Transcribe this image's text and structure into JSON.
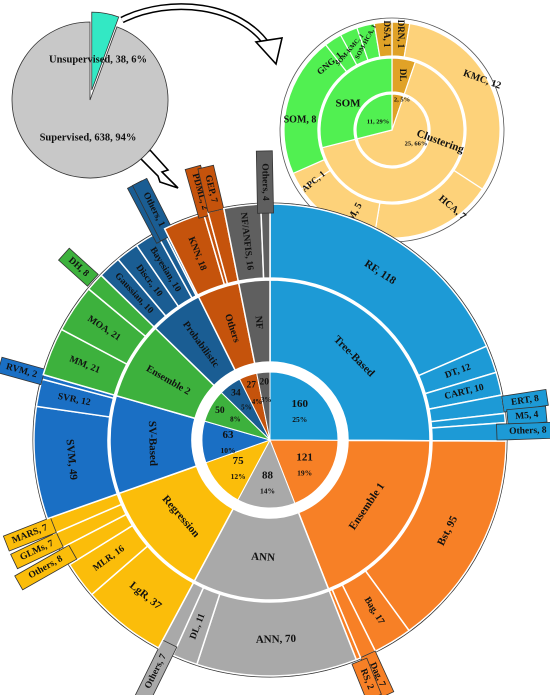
{
  "chart_data": [
    {
      "type": "pie",
      "labels": [
        "Unsupervised",
        "Supervised"
      ],
      "values": [
        38,
        638
      ],
      "percent_labels": [
        "6%",
        "94%"
      ],
      "slice_text": [
        "Unsupervised, 38, 6%",
        "Supervised, 638, 94%"
      ],
      "colors": [
        "#33e8c4",
        "#c8c8c8"
      ]
    },
    {
      "type": "sunburst",
      "name": "unsupervised",
      "inner": [
        {
          "label": "2, 5%",
          "value": 2,
          "color": "#e0a227"
        },
        {
          "label": "25, 66%",
          "value": 25,
          "color": "#fdd27a"
        },
        {
          "label": "11, 29%",
          "value": 11,
          "color": "#51f051"
        }
      ],
      "middle": [
        {
          "label": "DL",
          "value": 2,
          "color": "#e0a227"
        },
        {
          "label": "Clustering",
          "value": 25,
          "color": "#fdd27a"
        },
        {
          "label": "SOM",
          "value": 11,
          "color": "#51f051"
        }
      ],
      "outer": [
        {
          "label": "DRN, 1",
          "value": 1,
          "color": "#e0a227"
        },
        {
          "label": "KMC, 12",
          "value": 12,
          "color": "#fdd27a"
        },
        {
          "label": "HCA, 7",
          "value": 7,
          "color": "#fdd27a"
        },
        {
          "label": "FCM, 5",
          "value": 5,
          "color": "#fdd27a"
        },
        {
          "label": "APC, 1",
          "value": 1,
          "color": "#fdd27a"
        },
        {
          "label": "SOM, 8",
          "value": 8,
          "color": "#51f051"
        },
        {
          "label": "GNG, 1",
          "value": 1,
          "color": "#51f051"
        },
        {
          "label": "SOM-KMC, 1",
          "value": 1,
          "color": "#51f051"
        },
        {
          "label": "SOM-HCA, 1",
          "value": 1,
          "color": "#51f051"
        },
        {
          "label": "DSA, 1",
          "value": 1,
          "color": "#e0a227"
        }
      ]
    },
    {
      "type": "sunburst",
      "name": "supervised",
      "groups": [
        {
          "label": "Tree-Based",
          "value": 160,
          "pct": "25%",
          "color": "#1d9ad6",
          "leaves": [
            [
              "RF, 118",
              118
            ],
            [
              "DT, 12",
              12
            ],
            [
              "CART, 10",
              10
            ],
            [
              "ERT, 8",
              8
            ],
            [
              "M5, 4",
              4
            ],
            [
              "Others, 8",
              8
            ]
          ]
        },
        {
          "label": "Ensemble 1",
          "value": 121,
          "pct": "19%",
          "color": "#f78026",
          "leaves": [
            [
              "Bst, 95",
              95
            ],
            [
              "Bag, 17",
              17
            ],
            [
              "Dag, 7",
              7
            ],
            [
              "RS, 2",
              2
            ]
          ]
        },
        {
          "label": "ANN",
          "value": 88,
          "pct": "14%",
          "color": "#a9a9a9",
          "leaves": [
            [
              "ANN, 70",
              70
            ],
            [
              "DL, 11",
              11
            ],
            [
              "Others, 7",
              7
            ]
          ]
        },
        {
          "label": "Regression",
          "value": 75,
          "pct": "12%",
          "color": "#fbbd0a",
          "leaves": [
            [
              "LgR, 37",
              37
            ],
            [
              "MLR, 16",
              16
            ],
            [
              "Others, 8",
              8
            ],
            [
              "GLMs, 7",
              7
            ],
            [
              "MARS, 7",
              7
            ]
          ]
        },
        {
          "label": "SV-Based",
          "value": 63,
          "pct": "10%",
          "color": "#1a6fc4",
          "leaves": [
            [
              "SVM, 49",
              49
            ],
            [
              "SVR, 12",
              12
            ],
            [
              "RVM, 2",
              2
            ]
          ]
        },
        {
          "label": "Ensemble 2",
          "value": 50,
          "pct": "8%",
          "color": "#3db13d",
          "leaves": [
            [
              "MM, 21",
              21
            ],
            [
              "MOA, 21",
              21
            ],
            [
              "DH, 8",
              8
            ]
          ]
        },
        {
          "label": "Probabilistic",
          "value": 34,
          "pct": "5%",
          "color": "#1a5d93",
          "leaves": [
            [
              "Gaussian, 10",
              10
            ],
            [
              "Discr., 10",
              10
            ],
            [
              "Bayesian, 10",
              10
            ],
            [
              "Markov, 3",
              3
            ],
            [
              "Others, 1",
              1
            ]
          ]
        },
        {
          "label": "Others",
          "value": 27,
          "pct": "4%",
          "color": "#c5530c",
          "leaves": [
            [
              "KNN, 18",
              18
            ],
            [
              "PDML, 2",
              2
            ],
            [
              "GEP, 7",
              7
            ]
          ]
        },
        {
          "label": "NF",
          "value": 20,
          "pct": "3%",
          "color": "#5f5f5f",
          "leaves": [
            [
              "NF/ANFIS, 16",
              16
            ],
            [
              "Others, 4",
              4
            ]
          ]
        }
      ]
    }
  ]
}
